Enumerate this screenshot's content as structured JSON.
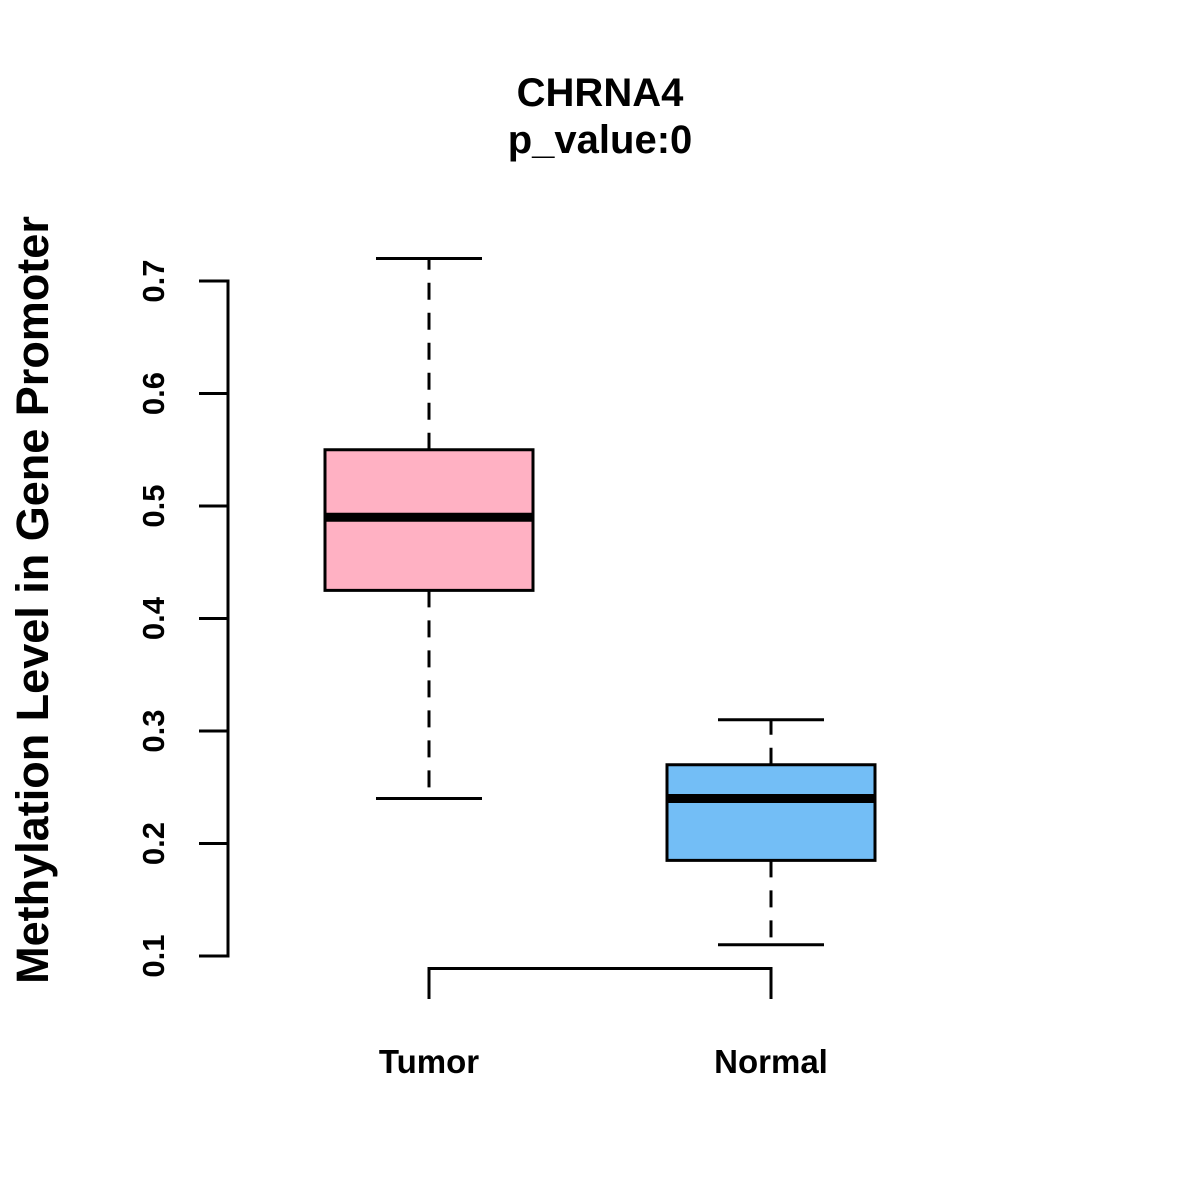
{
  "figure": {
    "background": "#FFFFFF",
    "title": "CHRNA4",
    "subtitle": "p_value:0"
  },
  "chart_data": {
    "type": "boxplot",
    "title": "CHRNA4",
    "subtitle": "p_value:0",
    "ylabel": "Methylation Level in Gene Promoter",
    "xlabel": "",
    "categories": [
      "Tumor",
      "Normal"
    ],
    "series": [
      {
        "name": "Tumor",
        "box_color": "#FFB1C3",
        "whisker_low": 0.24,
        "q1": 0.425,
        "median": 0.49,
        "q3": 0.55,
        "whisker_high": 0.72
      },
      {
        "name": "Normal",
        "box_color": "#73BEF6",
        "whisker_low": 0.11,
        "q1": 0.185,
        "median": 0.24,
        "q3": 0.27,
        "whisker_high": 0.31
      }
    ],
    "yticks": [
      0.1,
      0.2,
      0.3,
      0.4,
      0.5,
      0.6,
      0.7
    ],
    "ylim": [
      0.08,
      0.73
    ],
    "grid": false,
    "legend": "none",
    "stroke_color": "#000000"
  }
}
